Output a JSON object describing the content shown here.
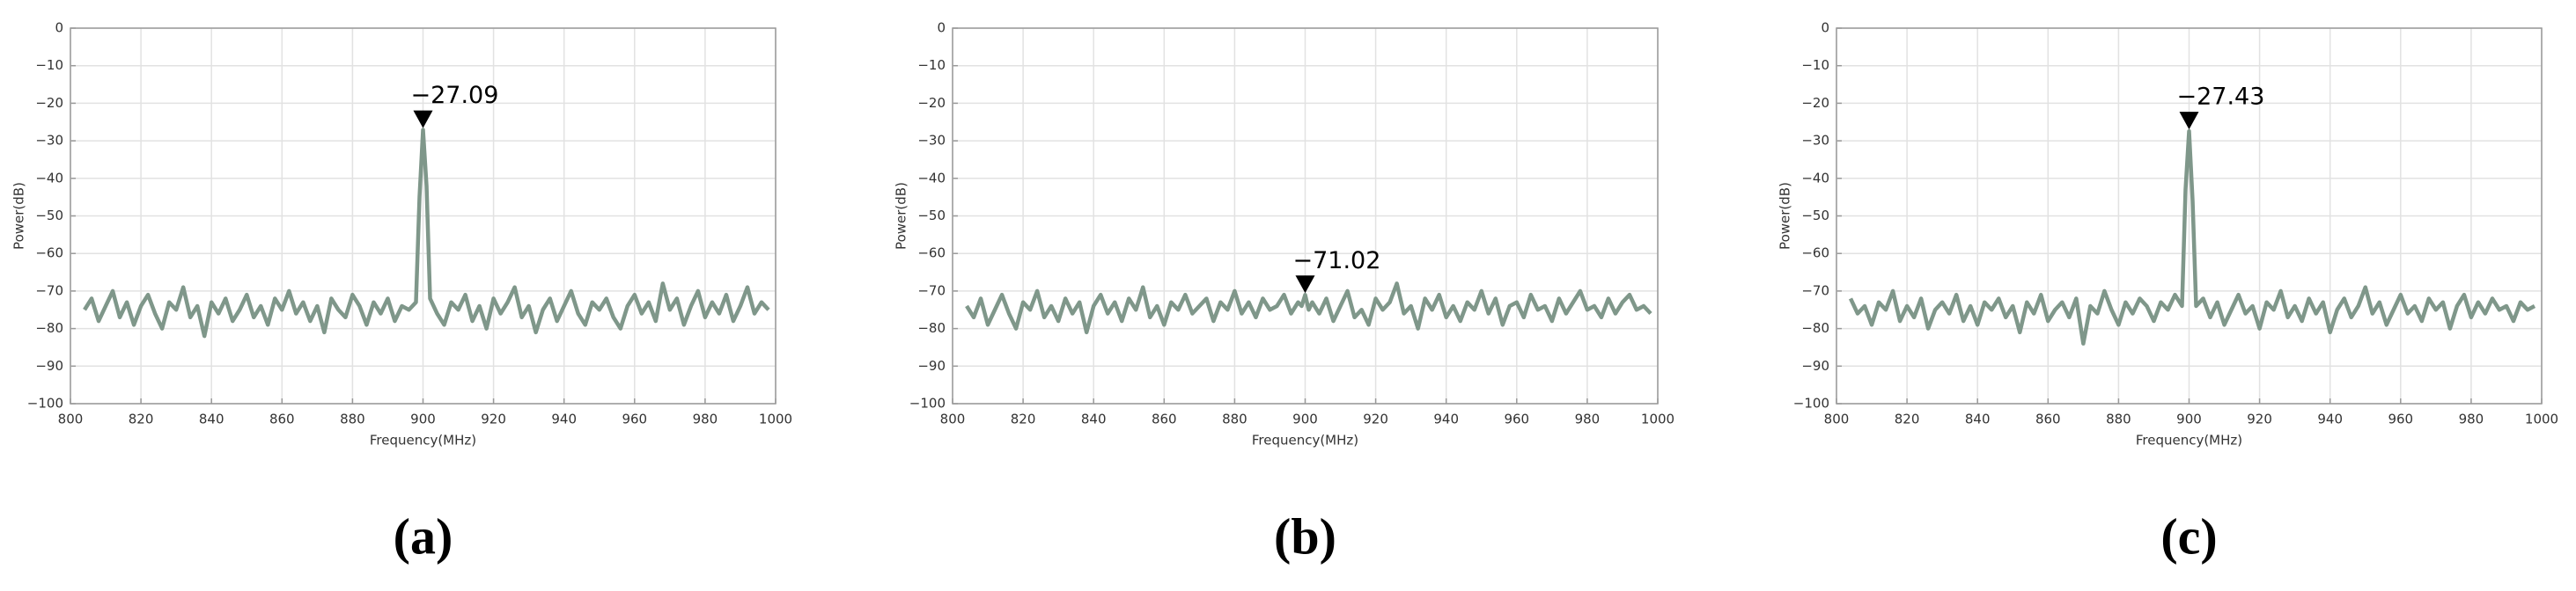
{
  "chart_data": [
    {
      "type": "line",
      "caption": "(a)",
      "xlabel": "Frequency(MHz)",
      "ylabel": "Power(dB)",
      "color": "#7f978a",
      "grid": true,
      "xlim": [
        800,
        1000
      ],
      "ylim": [
        -100,
        0
      ],
      "xticks": [
        800,
        820,
        840,
        860,
        880,
        900,
        920,
        940,
        960,
        980,
        1000
      ],
      "yticks": [
        0,
        {
          "value": -10,
          "label": "−10"
        },
        {
          "value": -20,
          "label": "−20"
        },
        {
          "value": -30,
          "label": "−30"
        },
        {
          "value": -40,
          "label": "−40"
        },
        {
          "value": -50,
          "label": "−50"
        },
        {
          "value": -60,
          "label": "−60"
        },
        {
          "value": -70,
          "label": "−70"
        },
        {
          "value": -80,
          "label": "−80"
        },
        {
          "value": -90,
          "label": "−90"
        },
        {
          "value": -100,
          "label": "−100"
        }
      ],
      "annotations": [
        {
          "x": 900,
          "y": -27.09,
          "label": "−27.09"
        }
      ],
      "x": [
        804,
        806,
        808,
        810,
        812,
        814,
        816,
        818,
        820,
        822,
        824,
        826,
        828,
        830,
        832,
        834,
        836,
        838,
        840,
        842,
        844,
        846,
        848,
        850,
        852,
        854,
        856,
        858,
        860,
        862,
        864,
        866,
        868,
        870,
        872,
        874,
        876,
        878,
        880,
        882,
        884,
        886,
        888,
        890,
        892,
        894,
        896,
        898,
        899,
        900,
        901,
        902,
        904,
        906,
        908,
        910,
        912,
        914,
        916,
        918,
        920,
        922,
        924,
        926,
        928,
        930,
        932,
        934,
        936,
        938,
        940,
        942,
        944,
        946,
        948,
        950,
        952,
        954,
        956,
        958,
        960,
        962,
        964,
        966,
        968,
        970,
        972,
        974,
        976,
        978,
        980,
        982,
        984,
        986,
        988,
        990,
        992,
        994,
        996,
        998
      ],
      "values": [
        -75,
        -72,
        -78,
        -74,
        -70,
        -77,
        -73,
        -79,
        -74,
        -71,
        -76,
        -80,
        -73,
        -75,
        -69,
        -77,
        -74,
        -82,
        -73,
        -76,
        -72,
        -78,
        -75,
        -71,
        -77,
        -74,
        -79,
        -72,
        -75,
        -70,
        -76,
        -73,
        -78,
        -74,
        -81,
        -72,
        -75,
        -77,
        -71,
        -74,
        -79,
        -73,
        -76,
        -72,
        -78,
        -74,
        -75,
        -73,
        -45,
        -27.09,
        -42,
        -72,
        -76,
        -79,
        -73,
        -75,
        -71,
        -78,
        -74,
        -80,
        -72,
        -76,
        -73,
        -69,
        -77,
        -74,
        -81,
        -75,
        -72,
        -78,
        -74,
        -70,
        -76,
        -79,
        -73,
        -75,
        -72,
        -77,
        -80,
        -74,
        -71,
        -76,
        -73,
        -78,
        -68,
        -75,
        -72,
        -79,
        -74,
        -70,
        -77,
        -73,
        -76,
        -71,
        -78,
        -74,
        -69,
        -76,
        -73,
        -75
      ]
    },
    {
      "type": "line",
      "caption": "(b)",
      "xlabel": "Frequency(MHz)",
      "ylabel": "Power(dB)",
      "color": "#7f978a",
      "grid": true,
      "xlim": [
        800,
        1000
      ],
      "ylim": [
        -100,
        0
      ],
      "xticks": [
        800,
        820,
        840,
        860,
        880,
        900,
        920,
        940,
        960,
        980,
        1000
      ],
      "yticks": [
        0,
        {
          "value": -10,
          "label": "−10"
        },
        {
          "value": -20,
          "label": "−20"
        },
        {
          "value": -30,
          "label": "−30"
        },
        {
          "value": -40,
          "label": "−40"
        },
        {
          "value": -50,
          "label": "−50"
        },
        {
          "value": -60,
          "label": "−60"
        },
        {
          "value": -70,
          "label": "−70"
        },
        {
          "value": -80,
          "label": "−80"
        },
        {
          "value": -90,
          "label": "−90"
        },
        {
          "value": -100,
          "label": "−100"
        }
      ],
      "annotations": [
        {
          "x": 900,
          "y": -71.02,
          "label": "−71.02"
        }
      ],
      "x": [
        804,
        806,
        808,
        810,
        812,
        814,
        816,
        818,
        820,
        822,
        824,
        826,
        828,
        830,
        832,
        834,
        836,
        838,
        840,
        842,
        844,
        846,
        848,
        850,
        852,
        854,
        856,
        858,
        860,
        862,
        864,
        866,
        868,
        870,
        872,
        874,
        876,
        878,
        880,
        882,
        884,
        886,
        888,
        890,
        892,
        894,
        896,
        898,
        899,
        900,
        901,
        902,
        904,
        906,
        908,
        910,
        912,
        914,
        916,
        918,
        920,
        922,
        924,
        926,
        928,
        930,
        932,
        934,
        936,
        938,
        940,
        942,
        944,
        946,
        948,
        950,
        952,
        954,
        956,
        958,
        960,
        962,
        964,
        966,
        968,
        970,
        972,
        974,
        976,
        978,
        980,
        982,
        984,
        986,
        988,
        990,
        992,
        994,
        996,
        998
      ],
      "values": [
        -74,
        -77,
        -72,
        -79,
        -75,
        -71,
        -76,
        -80,
        -73,
        -75,
        -70,
        -77,
        -74,
        -78,
        -72,
        -76,
        -73,
        -81,
        -74,
        -71,
        -76,
        -73,
        -78,
        -72,
        -75,
        -69,
        -77,
        -74,
        -79,
        -73,
        -75,
        -71,
        -76,
        -74,
        -72,
        -78,
        -73,
        -75,
        -70,
        -76,
        -73,
        -77,
        -72,
        -75,
        -74,
        -71,
        -76,
        -73,
        -74,
        -71.02,
        -75,
        -73,
        -76,
        -72,
        -78,
        -74,
        -70,
        -77,
        -75,
        -79,
        -72,
        -75,
        -73,
        -68,
        -76,
        -74,
        -80,
        -72,
        -75,
        -71,
        -77,
        -74,
        -78,
        -73,
        -75,
        -70,
        -76,
        -72,
        -79,
        -74,
        -73,
        -77,
        -71,
        -75,
        -74,
        -78,
        -72,
        -76,
        -73,
        -70,
        -75,
        -74,
        -77,
        -72,
        -76,
        -73,
        -71,
        -75,
        -74,
        -76
      ]
    },
    {
      "type": "line",
      "caption": "(c)",
      "xlabel": "Frequency(MHz)",
      "ylabel": "Power(dB)",
      "color": "#7f978a",
      "grid": true,
      "xlim": [
        800,
        1000
      ],
      "ylim": [
        -100,
        0
      ],
      "xticks": [
        800,
        820,
        840,
        860,
        880,
        900,
        920,
        940,
        960,
        980,
        1000
      ],
      "yticks": [
        0,
        {
          "value": -10,
          "label": "−10"
        },
        {
          "value": -20,
          "label": "−20"
        },
        {
          "value": -30,
          "label": "−30"
        },
        {
          "value": -40,
          "label": "−40"
        },
        {
          "value": -50,
          "label": "−50"
        },
        {
          "value": -60,
          "label": "−60"
        },
        {
          "value": -70,
          "label": "−70"
        },
        {
          "value": -80,
          "label": "−80"
        },
        {
          "value": -90,
          "label": "−90"
        },
        {
          "value": -100,
          "label": "−100"
        }
      ],
      "annotations": [
        {
          "x": 900,
          "y": -27.43,
          "label": "−27.43"
        }
      ],
      "x": [
        804,
        806,
        808,
        810,
        812,
        814,
        816,
        818,
        820,
        822,
        824,
        826,
        828,
        830,
        832,
        834,
        836,
        838,
        840,
        842,
        844,
        846,
        848,
        850,
        852,
        854,
        856,
        858,
        860,
        862,
        864,
        866,
        868,
        870,
        872,
        874,
        876,
        878,
        880,
        882,
        884,
        886,
        888,
        890,
        892,
        894,
        896,
        898,
        899,
        900,
        901,
        902,
        904,
        906,
        908,
        910,
        912,
        914,
        916,
        918,
        920,
        922,
        924,
        926,
        928,
        930,
        932,
        934,
        936,
        938,
        940,
        942,
        944,
        946,
        948,
        950,
        952,
        954,
        956,
        958,
        960,
        962,
        964,
        966,
        968,
        970,
        972,
        974,
        976,
        978,
        980,
        982,
        984,
        986,
        988,
        990,
        992,
        994,
        996,
        998
      ],
      "values": [
        -72,
        -76,
        -74,
        -79,
        -73,
        -75,
        -70,
        -78,
        -74,
        -77,
        -72,
        -80,
        -75,
        -73,
        -76,
        -71,
        -78,
        -74,
        -79,
        -73,
        -75,
        -72,
        -77,
        -74,
        -81,
        -73,
        -76,
        -71,
        -78,
        -75,
        -73,
        -77,
        -72,
        -84,
        -74,
        -76,
        -70,
        -75,
        -79,
        -73,
        -76,
        -72,
        -74,
        -78,
        -73,
        -75,
        -71,
        -74,
        -43,
        -27.43,
        -46,
        -74,
        -72,
        -77,
        -73,
        -79,
        -75,
        -71,
        -76,
        -74,
        -80,
        -73,
        -75,
        -70,
        -77,
        -74,
        -78,
        -72,
        -76,
        -73,
        -81,
        -75,
        -72,
        -77,
        -74,
        -69,
        -76,
        -73,
        -79,
        -75,
        -71,
        -76,
        -74,
        -78,
        -72,
        -75,
        -73,
        -80,
        -74,
        -71,
        -77,
        -73,
        -76,
        -72,
        -75,
        -74,
        -78,
        -73,
        -75,
        -74
      ]
    }
  ]
}
